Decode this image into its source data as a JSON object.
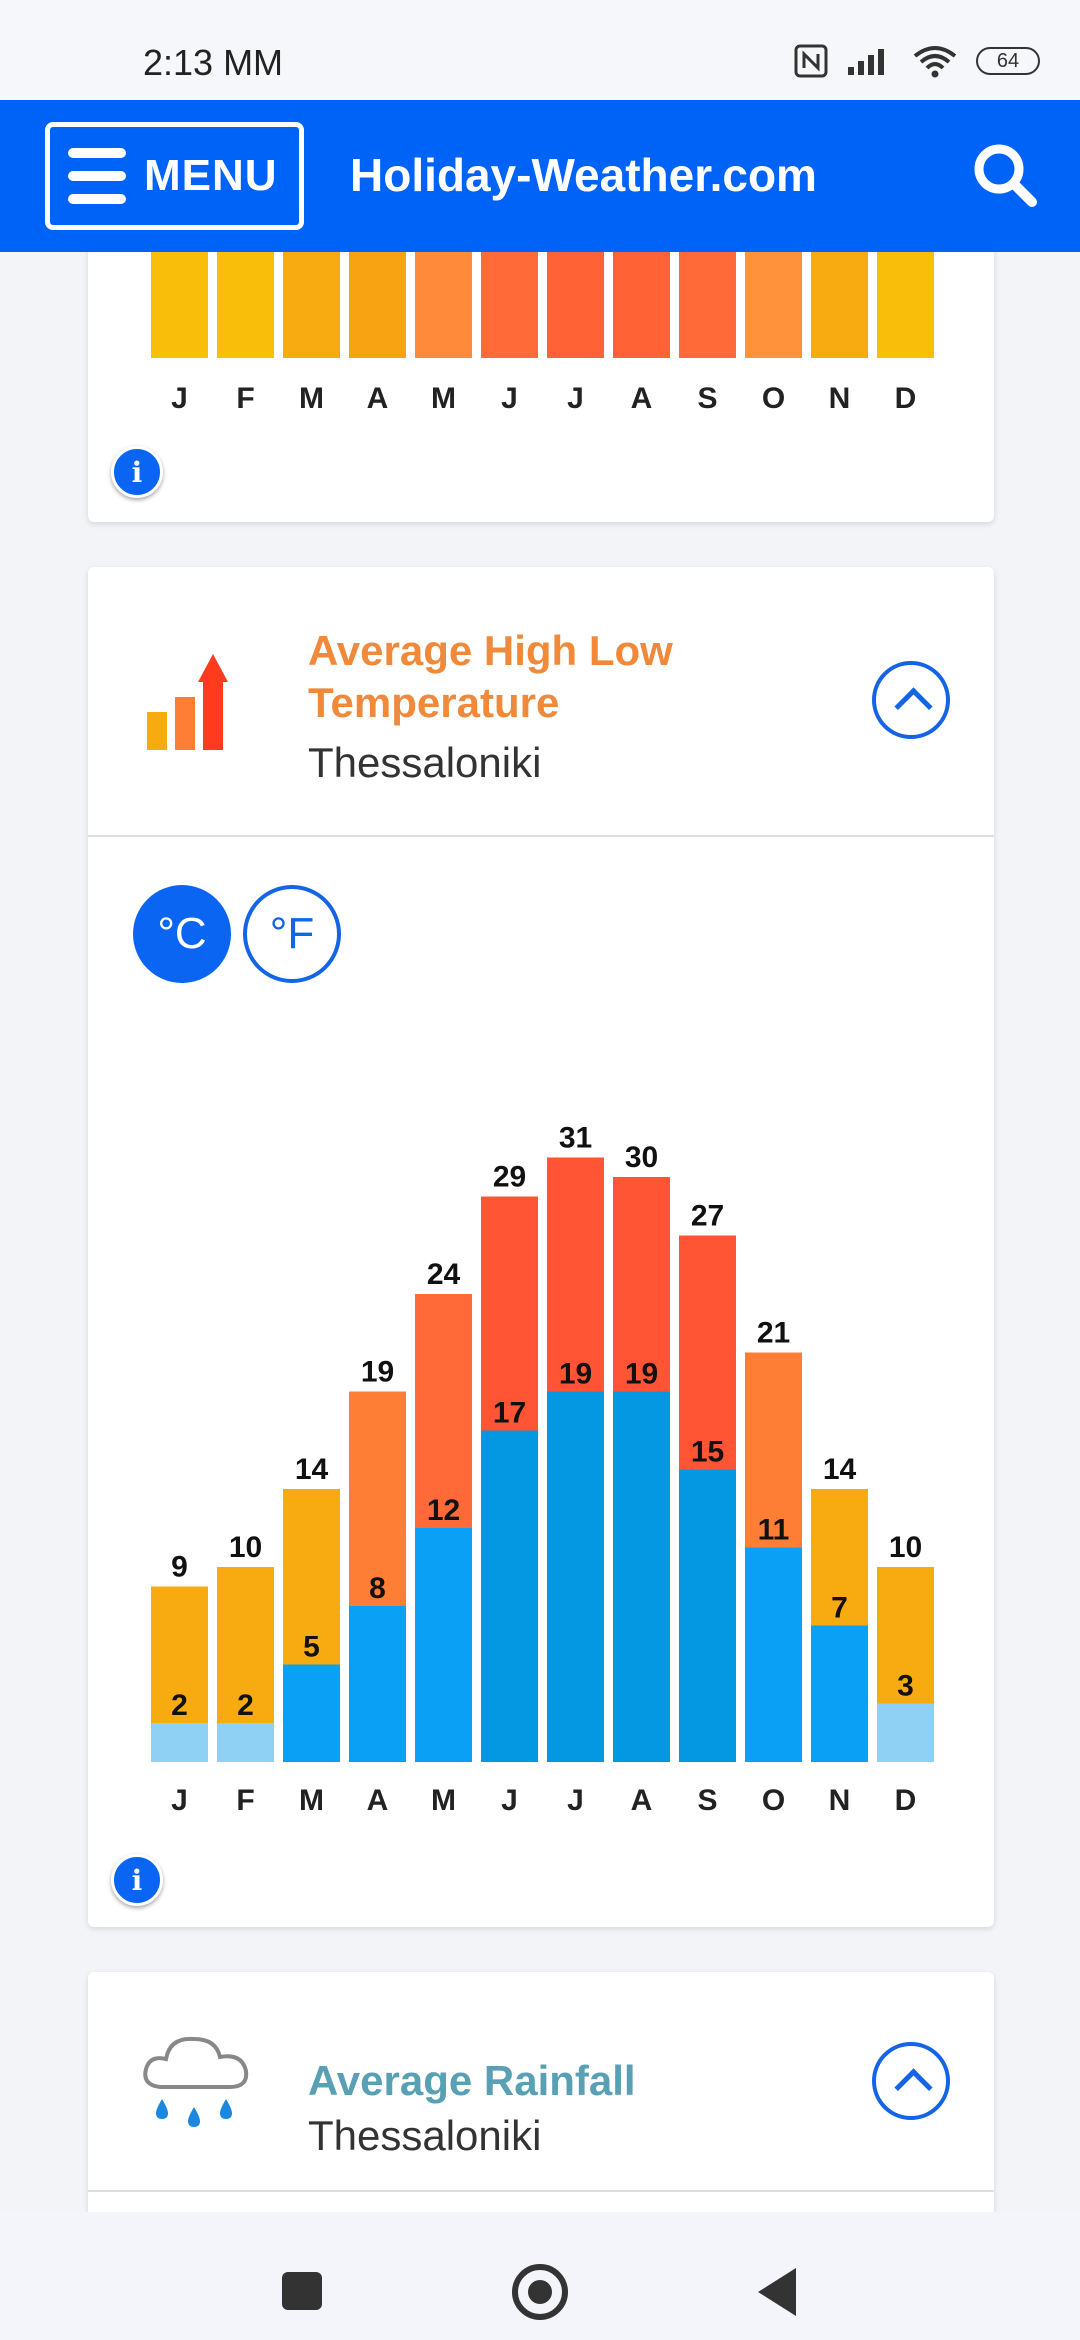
{
  "status": {
    "time": "2:13 MM",
    "battery": "64"
  },
  "header": {
    "menu_label": "MENU",
    "site_title": "Holiday-Weather.com"
  },
  "month_labels": [
    "J",
    "F",
    "M",
    "A",
    "M",
    "J",
    "J",
    "A",
    "S",
    "O",
    "N",
    "D"
  ],
  "top_chart": {
    "colors": [
      "#f8be0a",
      "#f8be0a",
      "#f8ab10",
      "#f8a412",
      "#ff8a3a",
      "#ff6a38",
      "#ff6235",
      "#ff6235",
      "#ff6a38",
      "#ff923a",
      "#f8ab10",
      "#f8be0a"
    ]
  },
  "temp_card": {
    "title": "Average High Low Temperature",
    "location": "Thessaloniki",
    "unit_c": "°C",
    "unit_f": "°F",
    "chart_data": {
      "type": "bar",
      "categories": [
        "J",
        "F",
        "M",
        "A",
        "M",
        "J",
        "J",
        "A",
        "S",
        "O",
        "N",
        "D"
      ],
      "series": [
        {
          "values": [
            9,
            10,
            14,
            19,
            24,
            29,
            31,
            30,
            27,
            21,
            14,
            10
          ]
        },
        {
          "values": [
            2,
            2,
            5,
            8,
            12,
            17,
            19,
            19,
            15,
            11,
            7,
            3
          ]
        }
      ],
      "high_colors": [
        "#f8ab10",
        "#f8ab10",
        "#f8ab10",
        "#ff7e35",
        "#ff6a38",
        "#ff5535",
        "#ff5535",
        "#ff5535",
        "#ff5535",
        "#ff7e35",
        "#f8ab10",
        "#f8ab10"
      ],
      "low_colors": [
        "#8ed1f5",
        "#8ed1f5",
        "#0aa0f5",
        "#0aa0f5",
        "#0aa0f5",
        "#0497e2",
        "#0497e2",
        "#0497e2",
        "#0497e2",
        "#0aa0f5",
        "#0aa0f5",
        "#8ed1f5"
      ]
    }
  },
  "rain_card": {
    "title": "Average Rainfall",
    "location": "Thessaloniki"
  },
  "icons": {
    "menu": "hamburger-icon",
    "search": "search-icon",
    "info": "info-icon",
    "temperature": "temperature-bars-icon",
    "rain": "rain-cloud-icon",
    "collapse": "chevron-up-icon"
  }
}
